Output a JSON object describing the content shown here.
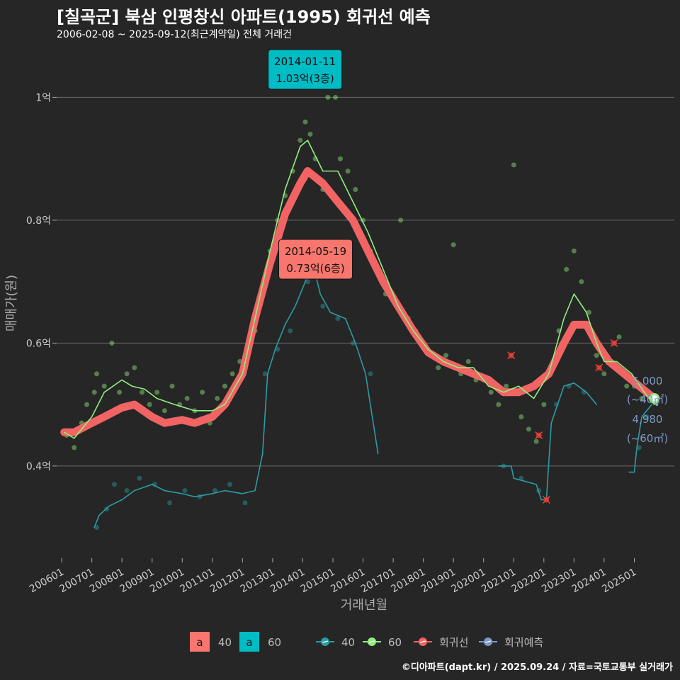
{
  "title": "[칠곡군] 북삼 인평창신 아파트(1995) 회귀선 예측",
  "subtitle": "2006-02-08 ~ 2025-09-12(최근계약일) 전체 거래건",
  "caption": "©디아파트(dapt.kr) / 2025.09.24 / 자료=국토교통부 실거래가",
  "colors": {
    "background": "#262626",
    "s40": "#2a9da3",
    "s60": "#90ee7e",
    "regression": "#f26464",
    "forecast": "#7d98c7",
    "label60": "#00bcc4",
    "label40": "#f8766d"
  },
  "chart_data": {
    "type": "line",
    "xlabel": "거래년월",
    "ylabel": "매매가(원)",
    "xlim": [
      "2005-11-01",
      "2026-05-01"
    ],
    "ylim": [
      0.25,
      1.08
    ],
    "y_ticks": [
      {
        "v": 0.4,
        "label": "0.4억"
      },
      {
        "v": 0.6,
        "label": "0.6억"
      },
      {
        "v": 0.8,
        "label": "0.8억"
      },
      {
        "v": 1.0,
        "label": "1억"
      }
    ],
    "x_ticks": [
      {
        "date": "2006-01-01",
        "label": "200601"
      },
      {
        "date": "2007-01-01",
        "label": "200701"
      },
      {
        "date": "2008-01-01",
        "label": "200801"
      },
      {
        "date": "2009-01-01",
        "label": "200901"
      },
      {
        "date": "2010-01-01",
        "label": "201001"
      },
      {
        "date": "2011-01-01",
        "label": "201101"
      },
      {
        "date": "2012-01-01",
        "label": "201201"
      },
      {
        "date": "2013-01-01",
        "label": "201301"
      },
      {
        "date": "2014-01-01",
        "label": "201401"
      },
      {
        "date": "2015-01-01",
        "label": "201501"
      },
      {
        "date": "2016-01-01",
        "label": "201601"
      },
      {
        "date": "2017-01-01",
        "label": "201701"
      },
      {
        "date": "2018-01-01",
        "label": "201801"
      },
      {
        "date": "2019-01-01",
        "label": "201901"
      },
      {
        "date": "2020-01-01",
        "label": "202001"
      },
      {
        "date": "2021-01-01",
        "label": "202101"
      },
      {
        "date": "2022-01-01",
        "label": "202201"
      },
      {
        "date": "2023-01-01",
        "label": "202301"
      },
      {
        "date": "2024-01-01",
        "label": "202401"
      },
      {
        "date": "2025-01-01",
        "label": "202501"
      }
    ],
    "series": [
      {
        "name": "40",
        "kind": "line",
        "points": [
          [
            "2007-02-01",
            0.3
          ],
          [
            "2007-04-01",
            0.32
          ],
          [
            "2007-08-01",
            0.335
          ],
          [
            "2008-01-01",
            0.345
          ],
          [
            "2008-06-01",
            0.36
          ],
          [
            "2009-01-01",
            0.37
          ],
          [
            "2009-06-01",
            0.36
          ],
          [
            "2010-01-01",
            0.355
          ],
          [
            "2010-06-01",
            0.35
          ],
          [
            "2011-01-01",
            0.355
          ],
          [
            "2011-06-01",
            0.36
          ],
          [
            "2012-01-01",
            0.355
          ],
          [
            "2012-06-01",
            0.36
          ],
          [
            "2012-09-01",
            0.42
          ],
          [
            "2012-11-01",
            0.55
          ],
          [
            "2013-02-01",
            0.59
          ],
          [
            "2013-06-01",
            0.63
          ],
          [
            "2013-10-01",
            0.66
          ],
          [
            "2014-01-01",
            0.69
          ],
          [
            "2014-05-01",
            0.73
          ],
          [
            "2014-08-01",
            0.68
          ],
          [
            "2014-12-01",
            0.65
          ],
          [
            "2015-06-01",
            0.64
          ],
          [
            "2015-10-01",
            0.6
          ],
          [
            "2016-02-01",
            0.55
          ],
          [
            "2016-07-01",
            0.42
          ]
        ]
      },
      {
        "name": "40",
        "kind": "line",
        "points": [
          [
            "2020-07-01",
            0.4
          ],
          [
            "2020-12-01",
            0.4
          ],
          [
            "2021-01-01",
            0.38
          ],
          [
            "2021-10-01",
            0.37
          ],
          [
            "2021-12-01",
            0.345
          ],
          [
            "2022-02-01",
            0.345
          ],
          [
            "2022-04-01",
            0.47
          ],
          [
            "2022-09-01",
            0.53
          ],
          [
            "2023-01-01",
            0.535
          ],
          [
            "2023-06-01",
            0.52
          ],
          [
            "2023-10-01",
            0.5
          ]
        ]
      },
      {
        "name": "40",
        "kind": "line",
        "points": [
          [
            "2024-11-01",
            0.39
          ],
          [
            "2025-01-01",
            0.39
          ],
          [
            "2025-02-01",
            0.43
          ],
          [
            "2025-04-01",
            0.48
          ],
          [
            "2025-08-01",
            0.5
          ]
        ]
      },
      {
        "name": "60",
        "kind": "line",
        "points": [
          [
            "2006-02-01",
            0.455
          ],
          [
            "2006-06-01",
            0.445
          ],
          [
            "2007-01-01",
            0.48
          ],
          [
            "2007-06-01",
            0.52
          ],
          [
            "2008-01-01",
            0.54
          ],
          [
            "2008-05-01",
            0.53
          ],
          [
            "2008-10-01",
            0.525
          ],
          [
            "2009-03-01",
            0.51
          ],
          [
            "2009-10-01",
            0.5
          ],
          [
            "2010-06-01",
            0.49
          ],
          [
            "2011-01-01",
            0.49
          ],
          [
            "2011-06-01",
            0.5
          ],
          [
            "2012-01-01",
            0.55
          ],
          [
            "2012-06-01",
            0.64
          ],
          [
            "2012-12-01",
            0.75
          ],
          [
            "2013-06-01",
            0.85
          ],
          [
            "2013-12-01",
            0.92
          ],
          [
            "2014-03-01",
            0.93
          ],
          [
            "2014-09-01",
            0.88
          ],
          [
            "2015-03-01",
            0.88
          ],
          [
            "2015-09-01",
            0.83
          ],
          [
            "2016-03-01",
            0.78
          ],
          [
            "2016-09-01",
            0.72
          ],
          [
            "2017-03-01",
            0.66
          ],
          [
            "2017-09-01",
            0.62
          ],
          [
            "2018-03-01",
            0.59
          ],
          [
            "2018-09-01",
            0.57
          ],
          [
            "2019-03-01",
            0.56
          ],
          [
            "2019-09-01",
            0.56
          ],
          [
            "2020-03-01",
            0.53
          ],
          [
            "2020-09-01",
            0.52
          ],
          [
            "2021-03-01",
            0.53
          ],
          [
            "2021-09-01",
            0.51
          ],
          [
            "2022-03-01",
            0.55
          ],
          [
            "2022-09-01",
            0.64
          ],
          [
            "2023-01-01",
            0.68
          ],
          [
            "2023-06-01",
            0.65
          ],
          [
            "2023-10-01",
            0.6
          ],
          [
            "2024-01-01",
            0.57
          ],
          [
            "2024-06-01",
            0.57
          ],
          [
            "2024-12-01",
            0.55
          ],
          [
            "2025-05-01",
            0.52
          ],
          [
            "2025-09-01",
            0.5
          ]
        ]
      },
      {
        "name": "회귀선",
        "kind": "line",
        "points": [
          [
            "2006-02-01",
            0.455
          ],
          [
            "2006-06-01",
            0.455
          ],
          [
            "2007-01-01",
            0.47
          ],
          [
            "2007-06-01",
            0.48
          ],
          [
            "2008-01-01",
            0.495
          ],
          [
            "2008-06-01",
            0.5
          ],
          [
            "2009-01-01",
            0.48
          ],
          [
            "2009-06-01",
            0.47
          ],
          [
            "2010-01-01",
            0.475
          ],
          [
            "2010-06-01",
            0.47
          ],
          [
            "2011-01-01",
            0.48
          ],
          [
            "2011-06-01",
            0.5
          ],
          [
            "2012-01-01",
            0.55
          ],
          [
            "2012-06-01",
            0.64
          ],
          [
            "2012-12-01",
            0.73
          ],
          [
            "2013-06-01",
            0.81
          ],
          [
            "2013-12-01",
            0.86
          ],
          [
            "2014-03-01",
            0.88
          ],
          [
            "2014-09-01",
            0.86
          ],
          [
            "2015-03-01",
            0.83
          ],
          [
            "2015-09-01",
            0.8
          ],
          [
            "2016-03-01",
            0.75
          ],
          [
            "2016-09-01",
            0.7
          ],
          [
            "2017-03-01",
            0.66
          ],
          [
            "2017-09-01",
            0.62
          ],
          [
            "2018-03-01",
            0.585
          ],
          [
            "2018-09-01",
            0.57
          ],
          [
            "2019-03-01",
            0.56
          ],
          [
            "2019-09-01",
            0.55
          ],
          [
            "2020-03-01",
            0.54
          ],
          [
            "2020-09-01",
            0.52
          ],
          [
            "2021-03-01",
            0.52
          ],
          [
            "2021-09-01",
            0.53
          ],
          [
            "2022-03-01",
            0.55
          ],
          [
            "2022-09-01",
            0.6
          ],
          [
            "2023-01-01",
            0.63
          ],
          [
            "2023-06-01",
            0.63
          ],
          [
            "2023-10-01",
            0.6
          ],
          [
            "2024-03-01",
            0.57
          ],
          [
            "2024-09-01",
            0.55
          ],
          [
            "2025-03-01",
            0.53
          ],
          [
            "2025-09-01",
            0.51
          ]
        ]
      },
      {
        "name": "회귀예측",
        "kind": "line",
        "points": [
          [
            "2025-09-01",
            0.51
          ],
          [
            "2025-10-01",
            0.5
          ]
        ]
      }
    ],
    "scatter_60": [
      [
        "2006-03-01",
        0.45
      ],
      [
        "2006-06-01",
        0.43
      ],
      [
        "2006-09-01",
        0.47
      ],
      [
        "2006-11-01",
        0.5
      ],
      [
        "2007-02-01",
        0.52
      ],
      [
        "2007-03-01",
        0.55
      ],
      [
        "2007-06-01",
        0.53
      ],
      [
        "2007-09-01",
        0.6
      ],
      [
        "2007-12-01",
        0.52
      ],
      [
        "2008-03-01",
        0.55
      ],
      [
        "2008-06-01",
        0.56
      ],
      [
        "2008-09-01",
        0.52
      ],
      [
        "2008-12-01",
        0.5
      ],
      [
        "2009-03-01",
        0.52
      ],
      [
        "2009-06-01",
        0.49
      ],
      [
        "2009-09-01",
        0.53
      ],
      [
        "2009-12-01",
        0.5
      ],
      [
        "2010-03-01",
        0.51
      ],
      [
        "2010-06-01",
        0.49
      ],
      [
        "2010-09-01",
        0.52
      ],
      [
        "2010-12-01",
        0.47
      ],
      [
        "2011-03-01",
        0.51
      ],
      [
        "2011-06-01",
        0.53
      ],
      [
        "2011-09-01",
        0.55
      ],
      [
        "2011-12-01",
        0.57
      ],
      [
        "2012-03-01",
        0.58
      ],
      [
        "2012-06-01",
        0.62
      ],
      [
        "2012-09-01",
        0.68
      ],
      [
        "2012-12-01",
        0.75
      ],
      [
        "2013-03-01",
        0.8
      ],
      [
        "2013-06-01",
        0.84
      ],
      [
        "2013-09-01",
        0.88
      ],
      [
        "2013-12-01",
        0.93
      ],
      [
        "2014-02-01",
        0.96
      ],
      [
        "2014-04-01",
        0.94
      ],
      [
        "2014-06-01",
        0.9
      ],
      [
        "2014-09-01",
        0.85
      ],
      [
        "2014-11-01",
        1.0
      ],
      [
        "2015-02-01",
        1.0
      ],
      [
        "2015-04-01",
        0.9
      ],
      [
        "2015-07-01",
        0.88
      ],
      [
        "2015-10-01",
        0.85
      ],
      [
        "2016-01-01",
        0.8
      ],
      [
        "2016-04-01",
        0.75
      ],
      [
        "2016-07-01",
        0.72
      ],
      [
        "2016-10-01",
        0.68
      ],
      [
        "2017-01-01",
        0.67
      ],
      [
        "2017-04-01",
        0.8
      ],
      [
        "2017-07-01",
        0.64
      ],
      [
        "2017-10-01",
        0.62
      ],
      [
        "2018-01-01",
        0.6
      ],
      [
        "2018-04-01",
        0.58
      ],
      [
        "2018-07-01",
        0.56
      ],
      [
        "2018-10-01",
        0.58
      ],
      [
        "2019-01-01",
        0.76
      ],
      [
        "2019-04-01",
        0.55
      ],
      [
        "2019-07-01",
        0.57
      ],
      [
        "2019-10-01",
        0.54
      ],
      [
        "2020-01-01",
        0.54
      ],
      [
        "2020-04-01",
        0.52
      ],
      [
        "2020-07-01",
        0.5
      ],
      [
        "2020-10-01",
        0.53
      ],
      [
        "2021-01-01",
        0.89
      ],
      [
        "2021-04-01",
        0.48
      ],
      [
        "2021-07-01",
        0.46
      ],
      [
        "2021-10-01",
        0.44
      ],
      [
        "2022-01-01",
        0.5
      ],
      [
        "2022-04-01",
        0.56
      ],
      [
        "2022-07-01",
        0.62
      ],
      [
        "2022-10-01",
        0.72
      ],
      [
        "2023-01-01",
        0.75
      ],
      [
        "2023-04-01",
        0.7
      ],
      [
        "2023-07-01",
        0.65
      ],
      [
        "2023-10-01",
        0.58
      ],
      [
        "2024-01-01",
        0.55
      ],
      [
        "2024-04-01",
        0.57
      ],
      [
        "2024-07-01",
        0.61
      ],
      [
        "2024-10-01",
        0.53
      ],
      [
        "2025-01-01",
        0.53
      ],
      [
        "2025-04-01",
        0.51
      ]
    ],
    "scatter_40": [
      [
        "2007-03-01",
        0.3
      ],
      [
        "2007-07-01",
        0.33
      ],
      [
        "2007-10-01",
        0.37
      ],
      [
        "2008-03-01",
        0.36
      ],
      [
        "2008-08-01",
        0.38
      ],
      [
        "2009-02-01",
        0.37
      ],
      [
        "2009-08-01",
        0.34
      ],
      [
        "2010-02-01",
        0.36
      ],
      [
        "2010-08-01",
        0.35
      ],
      [
        "2011-02-01",
        0.36
      ],
      [
        "2011-08-01",
        0.37
      ],
      [
        "2012-02-01",
        0.34
      ],
      [
        "2012-10-01",
        0.55
      ],
      [
        "2013-03-01",
        0.59
      ],
      [
        "2013-08-01",
        0.62
      ],
      [
        "2014-03-01",
        0.7
      ],
      [
        "2014-09-01",
        0.66
      ],
      [
        "2015-03-01",
        0.64
      ],
      [
        "2015-09-01",
        0.6
      ],
      [
        "2016-04-01",
        0.55
      ],
      [
        "2020-09-01",
        0.4
      ],
      [
        "2021-04-01",
        0.38
      ],
      [
        "2021-11-01",
        0.36
      ],
      [
        "2022-06-01",
        0.5
      ],
      [
        "2022-11-01",
        0.53
      ],
      [
        "2023-05-01",
        0.52
      ],
      [
        "2025-03-01",
        0.43
      ],
      [
        "2025-06-01",
        0.48
      ]
    ],
    "outliers": [
      [
        "2020-12-01",
        0.58
      ],
      [
        "2021-11-01",
        0.45
      ],
      [
        "2022-02-01",
        0.345
      ],
      [
        "2023-11-01",
        0.56
      ],
      [
        "2024-05-01",
        0.6
      ]
    ],
    "annotations": [
      {
        "date": "2014-01-11",
        "y": 1.03,
        "line1": "2014-01-11",
        "line2": "1.03억(3층)",
        "series": "60"
      },
      {
        "date": "2014-05-19",
        "y": 0.73,
        "line1": "2014-05-19",
        "line2": "0.73억(6층)",
        "series": "40"
      }
    ],
    "forecast_labels": [
      {
        "value": "5,000",
        "area": "(~40㎡)"
      },
      {
        "value": "4,980",
        "area": "(~60㎡)"
      }
    ],
    "legend": {
      "position": "bottom",
      "label_items": [
        {
          "key": "a",
          "name": "40"
        },
        {
          "key": "a",
          "name": "60"
        }
      ],
      "line_items": [
        {
          "name": "40"
        },
        {
          "name": "60"
        },
        {
          "name": "회귀선"
        },
        {
          "name": "회귀예측"
        }
      ]
    }
  }
}
